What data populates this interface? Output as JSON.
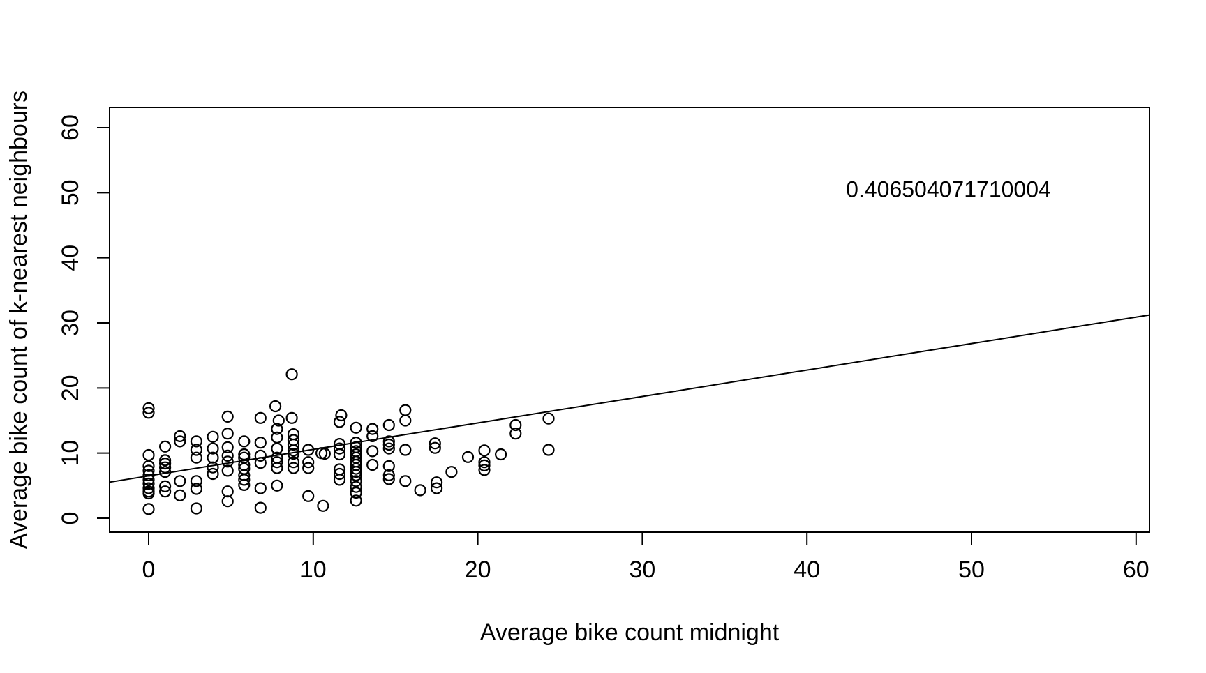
{
  "figure": {
    "background": "#ffffff",
    "foreground": "#000000"
  },
  "chart_data": {
    "type": "scatter",
    "title": "",
    "xlabel": "Average bike count midnight",
    "ylabel": "Average bike count of k-nearest neighbours",
    "x_ticks": [
      0,
      10,
      20,
      30,
      40,
      50,
      60
    ],
    "y_ticks": [
      0,
      10,
      20,
      30,
      40,
      50,
      60
    ],
    "xlim": [
      -2.4,
      60.9
    ],
    "ylim": [
      -2.2,
      63.1
    ],
    "grid": false,
    "legend": "none",
    "marker": "open-circle",
    "annotation": {
      "text": "0.406504071710004",
      "x": 48.6,
      "y": 50.5
    },
    "regression_line": {
      "slope": 0.4065,
      "intercept": 6.5,
      "x_start": -2.4,
      "x_end": 60.85
    },
    "points": [
      [
        0,
        16.9
      ],
      [
        0,
        16.2
      ],
      [
        0,
        9.7
      ],
      [
        0,
        8.0
      ],
      [
        0,
        7.3
      ],
      [
        0,
        6.6
      ],
      [
        0,
        5.9
      ],
      [
        0,
        5.3
      ],
      [
        0,
        4.6
      ],
      [
        0,
        4.1
      ],
      [
        0,
        3.8
      ],
      [
        0,
        1.4
      ],
      [
        1,
        11.0
      ],
      [
        1,
        8.9
      ],
      [
        1,
        8.4
      ],
      [
        1,
        7.8
      ],
      [
        1,
        7.1
      ],
      [
        1,
        4.9
      ],
      [
        1,
        4.1
      ],
      [
        1.9,
        12.6
      ],
      [
        1.9,
        11.8
      ],
      [
        1.9,
        5.7
      ],
      [
        1.9,
        3.5
      ],
      [
        2.9,
        11.8
      ],
      [
        2.9,
        10.5
      ],
      [
        2.9,
        9.3
      ],
      [
        2.9,
        5.7
      ],
      [
        2.9,
        4.5
      ],
      [
        2.9,
        1.5
      ],
      [
        3.9,
        12.5
      ],
      [
        3.9,
        10.7
      ],
      [
        3.9,
        9.3
      ],
      [
        3.9,
        7.8
      ],
      [
        3.9,
        6.8
      ],
      [
        4.8,
        15.6
      ],
      [
        4.8,
        13.0
      ],
      [
        4.8,
        10.9
      ],
      [
        4.8,
        9.6
      ],
      [
        4.8,
        8.7
      ],
      [
        4.8,
        7.3
      ],
      [
        4.8,
        4.1
      ],
      [
        4.8,
        2.6
      ],
      [
        5.8,
        11.8
      ],
      [
        5.8,
        9.8
      ],
      [
        5.8,
        9.3
      ],
      [
        5.8,
        8.2
      ],
      [
        5.8,
        7.6
      ],
      [
        5.8,
        6.6
      ],
      [
        5.8,
        5.9
      ],
      [
        5.8,
        5.1
      ],
      [
        6.8,
        15.4
      ],
      [
        6.8,
        11.6
      ],
      [
        6.8,
        9.6
      ],
      [
        6.8,
        8.5
      ],
      [
        6.8,
        4.6
      ],
      [
        6.8,
        1.6
      ],
      [
        7.7,
        17.2
      ],
      [
        7.9,
        15.0
      ],
      [
        7.8,
        13.7
      ],
      [
        7.8,
        12.4
      ],
      [
        7.8,
        10.7
      ],
      [
        7.8,
        9.3
      ],
      [
        7.8,
        8.6
      ],
      [
        7.8,
        7.7
      ],
      [
        7.8,
        5.0
      ],
      [
        8.7,
        22.1
      ],
      [
        8.7,
        15.4
      ],
      [
        8.8,
        12.9
      ],
      [
        8.8,
        12.0
      ],
      [
        8.8,
        11.3
      ],
      [
        8.8,
        10.4
      ],
      [
        8.8,
        9.9
      ],
      [
        8.8,
        8.6
      ],
      [
        8.8,
        7.7
      ],
      [
        9.7,
        10.5
      ],
      [
        9.7,
        8.6
      ],
      [
        9.7,
        7.7
      ],
      [
        9.7,
        3.4
      ],
      [
        10.5,
        10.0
      ],
      [
        10.7,
        9.9
      ],
      [
        10.6,
        1.9
      ],
      [
        11.7,
        15.8
      ],
      [
        11.6,
        14.8
      ],
      [
        11.6,
        11.4
      ],
      [
        11.6,
        10.7
      ],
      [
        11.6,
        9.8
      ],
      [
        11.6,
        7.5
      ],
      [
        11.6,
        6.8
      ],
      [
        11.6,
        5.9
      ],
      [
        12.6,
        13.9
      ],
      [
        12.6,
        11.6
      ],
      [
        12.6,
        10.9
      ],
      [
        12.6,
        10.3
      ],
      [
        12.6,
        9.8
      ],
      [
        12.6,
        9.3
      ],
      [
        12.6,
        8.7
      ],
      [
        12.6,
        8.2
      ],
      [
        12.6,
        7.6
      ],
      [
        12.6,
        7.1
      ],
      [
        12.6,
        6.6
      ],
      [
        12.6,
        5.7
      ],
      [
        12.6,
        4.8
      ],
      [
        12.6,
        3.9
      ],
      [
        12.6,
        2.7
      ],
      [
        13.6,
        13.7
      ],
      [
        13.6,
        12.6
      ],
      [
        13.6,
        10.3
      ],
      [
        13.6,
        8.2
      ],
      [
        14.6,
        14.3
      ],
      [
        14.6,
        11.8
      ],
      [
        14.6,
        11.3
      ],
      [
        14.6,
        10.7
      ],
      [
        14.6,
        8.0
      ],
      [
        14.6,
        6.6
      ],
      [
        14.6,
        6.0
      ],
      [
        15.6,
        16.6
      ],
      [
        15.6,
        15.0
      ],
      [
        15.6,
        10.5
      ],
      [
        15.6,
        5.7
      ],
      [
        16.5,
        4.3
      ],
      [
        17.4,
        11.5
      ],
      [
        17.4,
        10.8
      ],
      [
        17.5,
        5.5
      ],
      [
        17.5,
        4.6
      ],
      [
        18.4,
        7.1
      ],
      [
        19.4,
        9.4
      ],
      [
        20.4,
        10.4
      ],
      [
        20.4,
        8.6
      ],
      [
        20.4,
        8.1
      ],
      [
        20.4,
        7.4
      ],
      [
        21.4,
        9.8
      ],
      [
        22.3,
        14.3
      ],
      [
        22.3,
        13.0
      ],
      [
        24.3,
        15.3
      ],
      [
        24.3,
        10.5
      ]
    ]
  }
}
